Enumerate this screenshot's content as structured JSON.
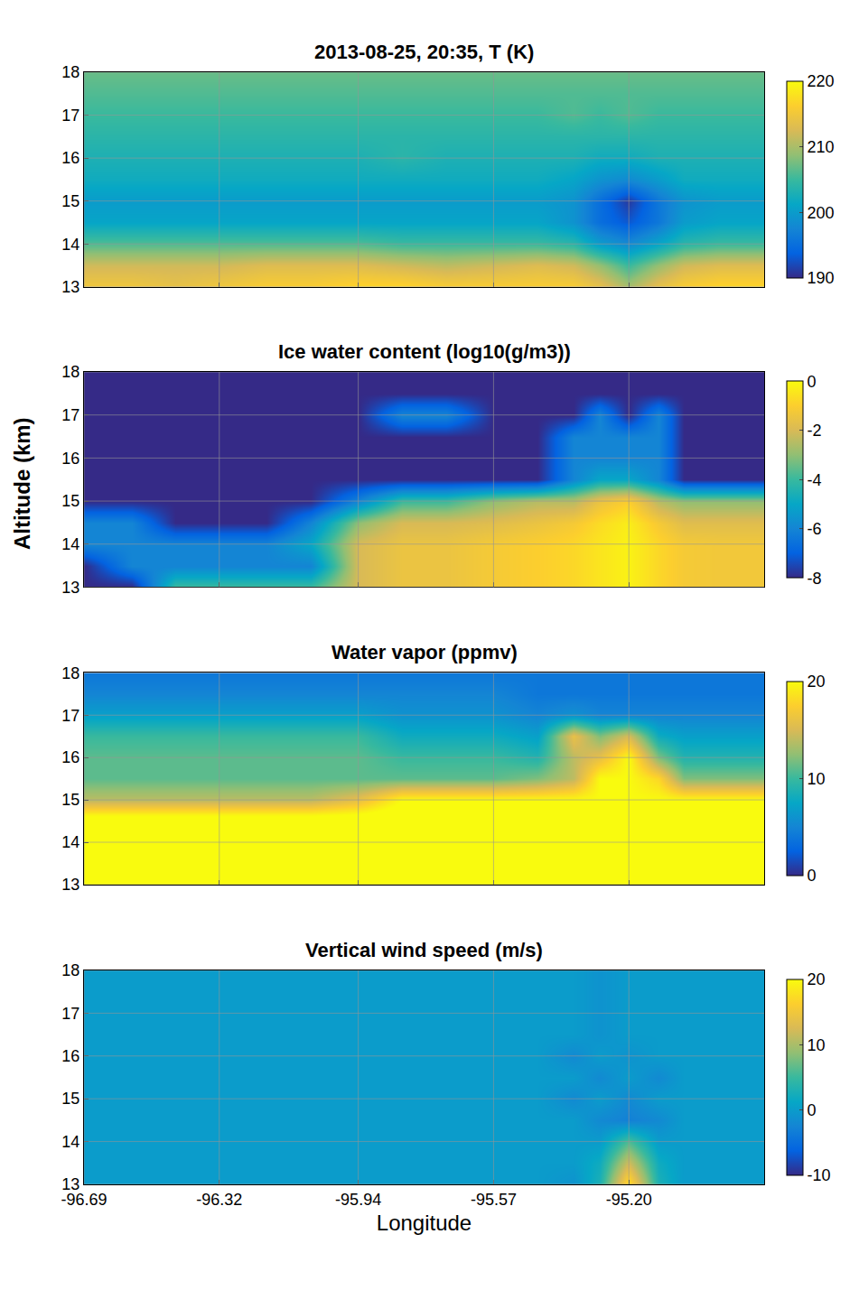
{
  "chart_data": [
    {
      "type": "heatmap",
      "title": "2013-08-25, 20:35, T (K)",
      "ylabel": "Altitude (km)",
      "tick_labels": "y",
      "grid": true,
      "x": [
        -96.69,
        -96.56,
        -96.44,
        -96.32,
        -96.19,
        -96.07,
        -95.94,
        -95.82,
        -95.7,
        -95.57,
        -95.45,
        -95.35,
        -95.28,
        -95.2,
        -95.12,
        -95.05,
        -94.95,
        -94.83
      ],
      "y": [
        13,
        13.5,
        14,
        14.5,
        15,
        15.5,
        16,
        16.5,
        17,
        17.5,
        18
      ],
      "z": [
        [
          215,
          215,
          214,
          215,
          216,
          216,
          217,
          217,
          216,
          216,
          216,
          216,
          214,
          210,
          214,
          216,
          217,
          217
        ],
        [
          212,
          212,
          212,
          212,
          213,
          213,
          213,
          212,
          211,
          212,
          213,
          212,
          209,
          205,
          209,
          212,
          213,
          213
        ],
        [
          206,
          206,
          206,
          206,
          206,
          206,
          206,
          205,
          205,
          205,
          205,
          204,
          200,
          198,
          201,
          204,
          205,
          205
        ],
        [
          201,
          201,
          201,
          201,
          201,
          201,
          201,
          201,
          201,
          201,
          201,
          199,
          195,
          193,
          196,
          200,
          201,
          201
        ],
        [
          200,
          200,
          200,
          200,
          200,
          200,
          200,
          200,
          200,
          200,
          200,
          199,
          195,
          191,
          196,
          199,
          200,
          200
        ],
        [
          202,
          202,
          202,
          202,
          202,
          202,
          202,
          202,
          202,
          202,
          202,
          201,
          199,
          198,
          200,
          202,
          202,
          202
        ],
        [
          203,
          203,
          203,
          203,
          203,
          203,
          203,
          204,
          203,
          203,
          203,
          203,
          202,
          202,
          203,
          203,
          203,
          203
        ],
        [
          204,
          204,
          204,
          204,
          204,
          204,
          204,
          204,
          204,
          204,
          204,
          204,
          204,
          204,
          204,
          204,
          204,
          204
        ],
        [
          205,
          205,
          205,
          205,
          205,
          205,
          205,
          205,
          205,
          205,
          205,
          206,
          205,
          206,
          205,
          205,
          205,
          205
        ],
        [
          206,
          206,
          206,
          206,
          206,
          206,
          206,
          206,
          206,
          206,
          206,
          206,
          206,
          206,
          206,
          206,
          206,
          206
        ],
        [
          207,
          207,
          207,
          207,
          207,
          207,
          207,
          207,
          207,
          207,
          207,
          207,
          207,
          207,
          207,
          207,
          207,
          207
        ]
      ],
      "xlim": [
        -96.69,
        -94.83
      ],
      "ylim": [
        13,
        18
      ],
      "xticks": [
        -96.69,
        -96.32,
        -95.94,
        -95.57,
        {
          "value": -95.2,
          "label": "-95.20"
        }
      ],
      "yticks": [
        13,
        14,
        15,
        16,
        17,
        18
      ],
      "colorbar_lim": [
        190,
        220
      ],
      "colorbar_ticks": [
        190,
        200,
        210,
        220
      ]
    },
    {
      "type": "heatmap",
      "title": "Ice water content (log10(g/m3))",
      "tick_labels": "y",
      "grid": true,
      "x": [
        -96.69,
        -96.56,
        -96.44,
        -96.32,
        -96.19,
        -96.07,
        -95.94,
        -95.82,
        -95.7,
        -95.57,
        -95.45,
        -95.35,
        -95.28,
        -95.2,
        -95.12,
        -95.05,
        -94.95,
        -94.83
      ],
      "y": [
        13,
        13.5,
        14,
        14.5,
        15,
        15.5,
        16,
        16.5,
        17,
        17.5,
        18
      ],
      "z": [
        [
          -8,
          -8,
          -4,
          -4,
          -4,
          -4,
          -2,
          -1.5,
          -1.5,
          -1.2,
          -1,
          -0.8,
          -0.5,
          -0.2,
          -0.8,
          -1.2,
          -1.3,
          -1.3
        ],
        [
          -8,
          -6,
          -6,
          -6,
          -6,
          -6,
          -2,
          -1.5,
          -1.5,
          -1.2,
          -1,
          -0.8,
          -0.5,
          -0.2,
          -0.8,
          -1.2,
          -1.3,
          -1.3
        ],
        [
          -6,
          -6,
          -6,
          -6,
          -6,
          -5,
          -2,
          -1.5,
          -1.5,
          -1.2,
          -1,
          -0.8,
          -0.5,
          -0.2,
          -0.8,
          -1.2,
          -1.3,
          -1.3
        ],
        [
          -6,
          -6,
          -8,
          -8,
          -8,
          -6,
          -3,
          -2,
          -2,
          -1.8,
          -1.5,
          -1.2,
          -0.7,
          -0.3,
          -1.2,
          -1.8,
          -1.8,
          -1.8
        ],
        [
          -8,
          -8,
          -8,
          -8,
          -8,
          -8,
          -6,
          -4,
          -4,
          -3,
          -2.5,
          -2.5,
          -1.5,
          -1,
          -2.5,
          -3,
          -3,
          -3
        ],
        [
          -8,
          -8,
          -8,
          -8,
          -8,
          -8,
          -8,
          -8,
          -8,
          -8,
          -8,
          -6,
          -5,
          -5,
          -6,
          -8,
          -8,
          -8
        ],
        [
          -8,
          -8,
          -8,
          -8,
          -8,
          -8,
          -8,
          -8,
          -8,
          -8,
          -8,
          -6,
          -6,
          -6,
          -6,
          -8,
          -8,
          -8
        ],
        [
          -8,
          -8,
          -8,
          -8,
          -8,
          -8,
          -8,
          -8,
          -8,
          -8,
          -8,
          -6,
          -6,
          -6,
          -6,
          -8,
          -8,
          -8
        ],
        [
          -8,
          -8,
          -8,
          -8,
          -8,
          -8,
          -8,
          -6,
          -6,
          -8,
          -8,
          -8,
          -6,
          -8,
          -6,
          -8,
          -8,
          -8
        ],
        [
          -8,
          -8,
          -8,
          -8,
          -8,
          -8,
          -8,
          -8,
          -8,
          -8,
          -8,
          -8,
          -8,
          -8,
          -8,
          -8,
          -8,
          -8
        ],
        [
          -8,
          -8,
          -8,
          -8,
          -8,
          -8,
          -8,
          -8,
          -8,
          -8,
          -8,
          -8,
          -8,
          -8,
          -8,
          -8,
          -8,
          -8
        ]
      ],
      "xlim": [
        -96.69,
        -94.83
      ],
      "ylim": [
        13,
        18
      ],
      "xticks": [
        -96.69,
        -96.32,
        -95.94,
        -95.57,
        {
          "value": -95.2,
          "label": "-95.20"
        }
      ],
      "yticks": [
        13,
        14,
        15,
        16,
        17,
        18
      ],
      "colorbar_lim": [
        -8,
        0
      ],
      "colorbar_ticks": [
        -8,
        -6,
        -4,
        -2,
        0
      ]
    },
    {
      "type": "heatmap",
      "title": "Water vapor (ppmv)",
      "tick_labels": "y",
      "grid": true,
      "x": [
        -96.69,
        -96.56,
        -96.44,
        -96.32,
        -96.19,
        -96.07,
        -95.94,
        -95.82,
        -95.7,
        -95.57,
        -95.45,
        -95.35,
        -95.28,
        -95.2,
        -95.12,
        -95.05,
        -94.95,
        -94.83
      ],
      "y": [
        13,
        13.5,
        14,
        14.5,
        15,
        15.5,
        16,
        16.5,
        17,
        17.5,
        18
      ],
      "z": [
        [
          22,
          22,
          22,
          22,
          22,
          22,
          22,
          22,
          22,
          22,
          22,
          22,
          22,
          22,
          22,
          22,
          22,
          22
        ],
        [
          22,
          22,
          22,
          22,
          22,
          22,
          22,
          22,
          22,
          22,
          22,
          22,
          22,
          22,
          22,
          22,
          22,
          22
        ],
        [
          22,
          22,
          22,
          22,
          22,
          22,
          22,
          22,
          22,
          22,
          22,
          22,
          22,
          22,
          22,
          22,
          22,
          22
        ],
        [
          22,
          22,
          22,
          22,
          22,
          22,
          22,
          22,
          22,
          22,
          22,
          22,
          22,
          22,
          22,
          22,
          22,
          22
        ],
        [
          14,
          14,
          14,
          14,
          14,
          14,
          16,
          20,
          20,
          20,
          20,
          20,
          20,
          20,
          20,
          20,
          20,
          20
        ],
        [
          11,
          11,
          11,
          11,
          11,
          11,
          11,
          11,
          11,
          11,
          12,
          14,
          20,
          20,
          18,
          12,
          12,
          12
        ],
        [
          11,
          11,
          11,
          11,
          11,
          11,
          11,
          10,
          10,
          10,
          9,
          14,
          16,
          20,
          12,
          9,
          9,
          9
        ],
        [
          10,
          10,
          10,
          10,
          10,
          10,
          10,
          8,
          8,
          8,
          7,
          16,
          12,
          15,
          8,
          7,
          7,
          7
        ],
        [
          7,
          7,
          7,
          7,
          7,
          7,
          7,
          6,
          6,
          6,
          5,
          6,
          5,
          5,
          5,
          5,
          5,
          5
        ],
        [
          5,
          5,
          5,
          5,
          5,
          5,
          5,
          5,
          5,
          5,
          4,
          4,
          4,
          4,
          4,
          4,
          4,
          4
        ],
        [
          4,
          4,
          4,
          4,
          4,
          4,
          4,
          4,
          4,
          4,
          4,
          4,
          4,
          4,
          4,
          4,
          4,
          4
        ]
      ],
      "xlim": [
        -96.69,
        -94.83
      ],
      "ylim": [
        13,
        18
      ],
      "xticks": [
        -96.69,
        -96.32,
        -95.94,
        -95.57,
        {
          "value": -95.2,
          "label": "-95.20"
        }
      ],
      "yticks": [
        13,
        14,
        15,
        16,
        17,
        18
      ],
      "colorbar_lim": [
        0,
        20
      ],
      "colorbar_ticks": [
        0,
        10,
        20
      ]
    },
    {
      "type": "heatmap",
      "title": "Vertical wind speed (m/s)",
      "xlabel": "Longitude",
      "grid": true,
      "x": [
        -96.69,
        -96.56,
        -96.44,
        -96.32,
        -96.19,
        -96.07,
        -95.94,
        -95.82,
        -95.7,
        -95.57,
        -95.45,
        -95.35,
        -95.28,
        -95.2,
        -95.12,
        -95.05,
        -94.95,
        -94.83
      ],
      "y": [
        13,
        13.5,
        14,
        14.5,
        15,
        15.5,
        16,
        16.5,
        17,
        17.5,
        18
      ],
      "z": [
        [
          0,
          0,
          0,
          0,
          0,
          0,
          0,
          0,
          0,
          0,
          0,
          -1,
          3,
          18,
          3,
          0,
          0,
          0
        ],
        [
          0,
          0,
          0,
          0,
          0,
          0,
          0,
          0,
          0,
          0,
          0,
          0,
          2,
          12,
          2,
          0,
          0,
          0
        ],
        [
          0,
          0,
          0,
          0,
          0,
          0,
          0,
          0,
          0,
          0,
          0,
          0,
          0,
          6,
          0,
          0,
          0,
          0
        ],
        [
          0,
          0,
          0,
          0,
          0,
          0,
          0,
          0,
          0,
          0,
          0,
          0,
          -2,
          -3,
          -2,
          0,
          0,
          0
        ],
        [
          0,
          0,
          0,
          0,
          0,
          0,
          0,
          0,
          0,
          0,
          0,
          -2,
          0,
          -2,
          0,
          0,
          0,
          0
        ],
        [
          0,
          0,
          0,
          0,
          0,
          0,
          0,
          0,
          0,
          0,
          0,
          0,
          -2,
          0,
          -2,
          0,
          0,
          0
        ],
        [
          0,
          0,
          0,
          0,
          0,
          0,
          0,
          0,
          0,
          0,
          0,
          -2,
          0,
          -1,
          0,
          0,
          0,
          0
        ],
        [
          0,
          0,
          0,
          0,
          0,
          0,
          0,
          0,
          0,
          0,
          0,
          0,
          -1,
          0,
          0,
          0,
          0,
          0
        ],
        [
          0,
          0,
          0,
          0,
          0,
          0,
          0,
          0,
          0,
          0,
          0,
          0,
          -1,
          0,
          0,
          0,
          0,
          0
        ],
        [
          0,
          0,
          0,
          0,
          0,
          0,
          0,
          0,
          0,
          0,
          0,
          0,
          -1,
          0,
          0,
          0,
          0,
          0
        ],
        [
          0,
          0,
          0,
          0,
          0,
          0,
          0,
          0,
          0,
          0,
          0,
          0,
          -1,
          0,
          0,
          0,
          0,
          0
        ]
      ],
      "xlim": [
        -96.69,
        -94.83
      ],
      "ylim": [
        13,
        18
      ],
      "xticks": [
        -96.69,
        -96.32,
        -95.94,
        -95.57,
        {
          "value": -95.2,
          "label": "-95.20"
        }
      ],
      "yticks": [
        13,
        14,
        15,
        16,
        17,
        18
      ],
      "colorbar_lim": [
        -10,
        20
      ],
      "colorbar_ticks": [
        -10,
        0,
        10,
        20
      ]
    }
  ]
}
